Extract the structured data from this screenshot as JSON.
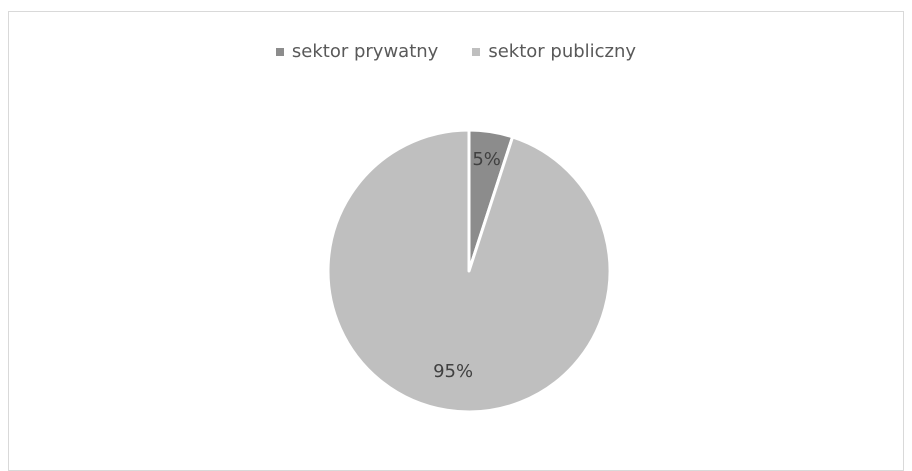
{
  "chart_data": {
    "type": "pie",
    "title": "",
    "categories": [
      "sektor prywatny",
      "sektor publiczny"
    ],
    "values": [
      5,
      95
    ],
    "data_labels": [
      "5%",
      "95%"
    ],
    "colors": [
      "#8c8c8c",
      "#bfbfbf"
    ],
    "legend_position": "top"
  }
}
